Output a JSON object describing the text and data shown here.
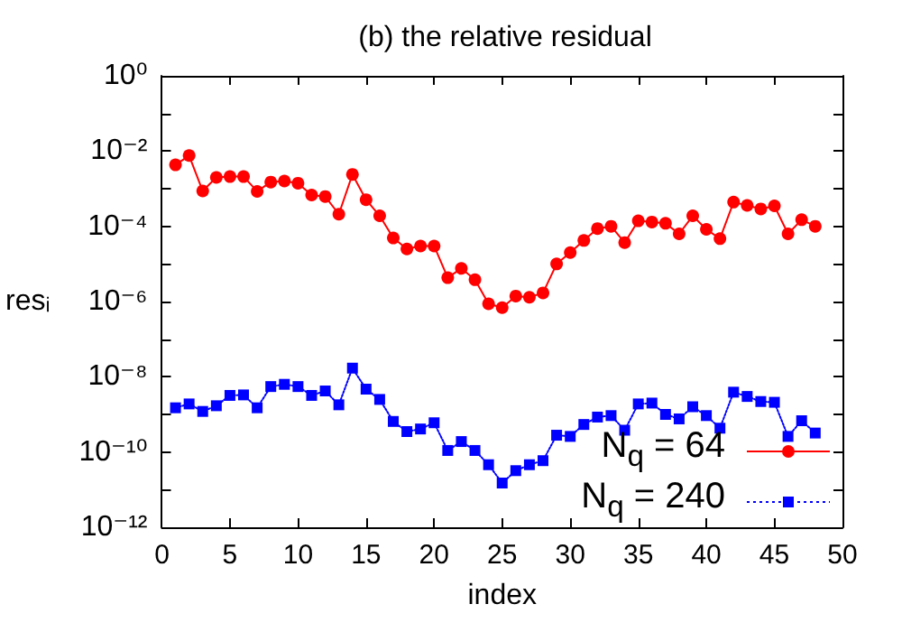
{
  "chart_data": {
    "type": "line",
    "title": "(b) the relative residual",
    "xlabel": "index",
    "ylabel": "resᵢ",
    "log": "y",
    "grid": false,
    "legend": "bottom right",
    "x": [
      1,
      2,
      3,
      4,
      5,
      6,
      7,
      8,
      9,
      10,
      11,
      12,
      13,
      14,
      15,
      16,
      17,
      18,
      19,
      20,
      21,
      22,
      23,
      24,
      25,
      26,
      27,
      28,
      29,
      30,
      31,
      32,
      33,
      34,
      35,
      36,
      37,
      38,
      39,
      40,
      41,
      42,
      43,
      44,
      45,
      46,
      47,
      48
    ],
    "xlim": [
      0,
      50
    ],
    "xticks": [
      0,
      5,
      10,
      15,
      20,
      25,
      30,
      35,
      40,
      45,
      50
    ],
    "ylim": [
      1e-12,
      1
    ],
    "yticks": [
      {
        "value": 1e-12,
        "label": "10⁻¹²"
      },
      {
        "value": 1e-11,
        "label": null
      },
      {
        "value": 1e-10,
        "label": "10⁻¹⁰"
      },
      {
        "value": 1e-09,
        "label": null
      },
      {
        "value": 1e-08,
        "label": "10⁻⁸"
      },
      {
        "value": 1e-07,
        "label": null
      },
      {
        "value": 1e-06,
        "label": "10⁻⁶"
      },
      {
        "value": 1e-05,
        "label": null
      },
      {
        "value": 0.0001,
        "label": "10⁻⁴"
      },
      {
        "value": 0.001,
        "label": null
      },
      {
        "value": 0.01,
        "label": "10⁻²"
      },
      {
        "value": 0.1,
        "label": null
      },
      {
        "value": 1,
        "label": "10⁰"
      }
    ],
    "series": [
      {
        "name": "N$_{q}$ = 64",
        "color": "#ff0000",
        "marker": "circle",
        "line_style": "solid",
        "values": [
          0.0043,
          0.0076,
          0.00087,
          0.002,
          0.0021,
          0.0021,
          0.00085,
          0.0015,
          0.0016,
          0.0014,
          0.00068,
          0.00062,
          0.00021,
          0.0024,
          0.00051,
          0.00019,
          4.9e-05,
          2.5e-05,
          3e-05,
          3e-05,
          4.3e-06,
          7.6e-06,
          3.8e-06,
          8.7e-07,
          6.9e-07,
          1.4e-06,
          1.3e-06,
          1.7e-06,
          1e-05,
          2e-05,
          4.2e-05,
          8.7e-05,
          0.0001,
          3.7e-05,
          0.00014,
          0.00013,
          0.00012,
          6.3e-05,
          0.00019,
          8.3e-05,
          4.7e-05,
          0.00044,
          0.00036,
          0.00029,
          0.00035,
          6.3e-05,
          0.00015,
          0.0001
        ]
      },
      {
        "name": "N$_{q}$ = 240",
        "color": "#0000ff",
        "marker": "square",
        "line_style": "dotted",
        "values": [
          1.5e-09,
          1.9e-09,
          1.2e-09,
          1.7e-09,
          3.2e-09,
          3.3e-09,
          1.5e-09,
          5.5e-09,
          6.3e-09,
          5.5e-09,
          3.2e-09,
          4.2e-09,
          1.8e-09,
          1.7e-08,
          4.7e-09,
          2.5e-09,
          6.5e-10,
          3.5e-10,
          4.1e-10,
          6e-10,
          1.1e-10,
          1.9e-10,
          1.1e-10,
          4.6e-11,
          1.5e-11,
          3.2e-11,
          4.6e-11,
          5.9e-11,
          2.8e-10,
          2.6e-10,
          5.4e-10,
          8.5e-10,
          9.3e-10,
          3.8e-10,
          1.9e-09,
          2e-09,
          1e-09,
          7.6e-10,
          1.6e-09,
          9.3e-10,
          4.3e-10,
          3.9e-09,
          3e-09,
          2.2e-09,
          2.1e-09,
          2.6e-10,
          6.8e-10,
          3.2e-10
        ]
      }
    ]
  }
}
